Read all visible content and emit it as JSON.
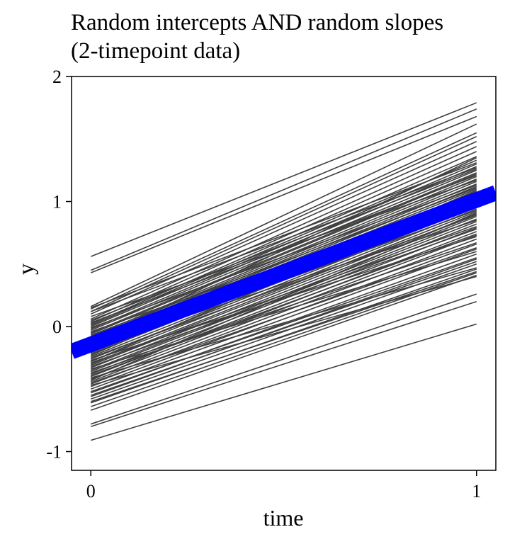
{
  "chart_data": {
    "type": "line",
    "title": [
      "Random intercepts AND random slopes",
      "(2-timepoint data)"
    ],
    "xlabel": "time",
    "ylabel": "y",
    "xlim": [
      -0.05,
      1.05
    ],
    "ylim": [
      -1.15,
      2.0
    ],
    "xticks": [
      0,
      1
    ],
    "xtick_labels": [
      "0",
      "1"
    ],
    "yticks": [
      -1,
      0,
      1,
      2
    ],
    "ytick_labels": [
      "-1",
      "0",
      "1",
      "2"
    ],
    "grid": false,
    "colors": {
      "individual": "#404040",
      "mean": "#0000ff"
    },
    "mean_line": {
      "x": [
        -0.05,
        1.05
      ],
      "y": [
        -0.2,
        1.07
      ]
    },
    "individual_lines": [
      [
        0.56,
        1.79
      ],
      [
        0.45,
        1.74
      ],
      [
        0.43,
        1.68
      ],
      [
        0.16,
        1.62
      ],
      [
        0.14,
        1.55
      ],
      [
        0.12,
        1.52
      ],
      [
        0.1,
        1.48
      ],
      [
        0.06,
        1.44
      ],
      [
        0.04,
        1.4
      ],
      [
        0.02,
        1.36
      ],
      [
        0.01,
        1.33
      ],
      [
        0.0,
        1.3
      ],
      [
        -0.02,
        1.28
      ],
      [
        -0.03,
        1.25
      ],
      [
        -0.05,
        1.23
      ],
      [
        -0.06,
        1.22
      ],
      [
        -0.08,
        1.2
      ],
      [
        -0.09,
        1.18
      ],
      [
        -0.1,
        1.16
      ],
      [
        -0.11,
        1.14
      ],
      [
        -0.12,
        1.12
      ],
      [
        -0.13,
        1.1
      ],
      [
        -0.15,
        1.08
      ],
      [
        -0.16,
        1.06
      ],
      [
        -0.18,
        1.05
      ],
      [
        -0.2,
        1.03
      ],
      [
        -0.21,
        1.01
      ],
      [
        -0.22,
        1.0
      ],
      [
        -0.24,
        0.98
      ],
      [
        -0.26,
        0.96
      ],
      [
        -0.28,
        0.94
      ],
      [
        -0.3,
        0.92
      ],
      [
        -0.31,
        0.9
      ],
      [
        -0.33,
        0.88
      ],
      [
        -0.35,
        0.86
      ],
      [
        -0.36,
        0.84
      ],
      [
        -0.38,
        0.82
      ],
      [
        -0.4,
        0.79
      ],
      [
        -0.42,
        0.76
      ],
      [
        -0.44,
        0.73
      ],
      [
        -0.46,
        0.7
      ],
      [
        -0.48,
        0.66
      ],
      [
        -0.5,
        0.62
      ],
      [
        -0.53,
        0.58
      ],
      [
        -0.56,
        0.54
      ],
      [
        -0.58,
        0.5
      ],
      [
        -0.61,
        0.46
      ],
      [
        -0.64,
        0.43
      ],
      [
        -0.67,
        0.41
      ],
      [
        -0.78,
        0.26
      ],
      [
        -0.8,
        0.2
      ],
      [
        -0.91,
        0.02
      ],
      [
        0.08,
        1.17
      ],
      [
        -0.04,
        1.02
      ],
      [
        -0.17,
        0.85
      ],
      [
        -0.27,
        0.72
      ],
      [
        -0.34,
        0.6
      ],
      [
        -0.41,
        0.47
      ],
      [
        -0.47,
        0.4
      ],
      [
        0.12,
        1.27
      ],
      [
        -0.07,
        1.11
      ],
      [
        -0.19,
        0.93
      ],
      [
        -0.29,
        0.8
      ],
      [
        -0.37,
        0.67
      ],
      [
        -0.52,
        0.55
      ],
      [
        0.03,
        1.21
      ],
      [
        -0.14,
        0.97
      ],
      [
        -0.25,
        0.89
      ],
      [
        -0.39,
        0.74
      ],
      [
        -0.45,
        0.63
      ],
      [
        -0.6,
        0.44
      ],
      [
        0.15,
        1.31
      ],
      [
        -0.01,
        1.13
      ],
      [
        -0.23,
        1.09
      ],
      [
        -0.32,
        0.78
      ],
      [
        -0.55,
        0.52
      ],
      [
        -0.12,
        1.35
      ],
      [
        -0.43,
        0.91
      ],
      [
        -0.28,
        1.04
      ],
      [
        0.05,
        1.26
      ]
    ]
  }
}
